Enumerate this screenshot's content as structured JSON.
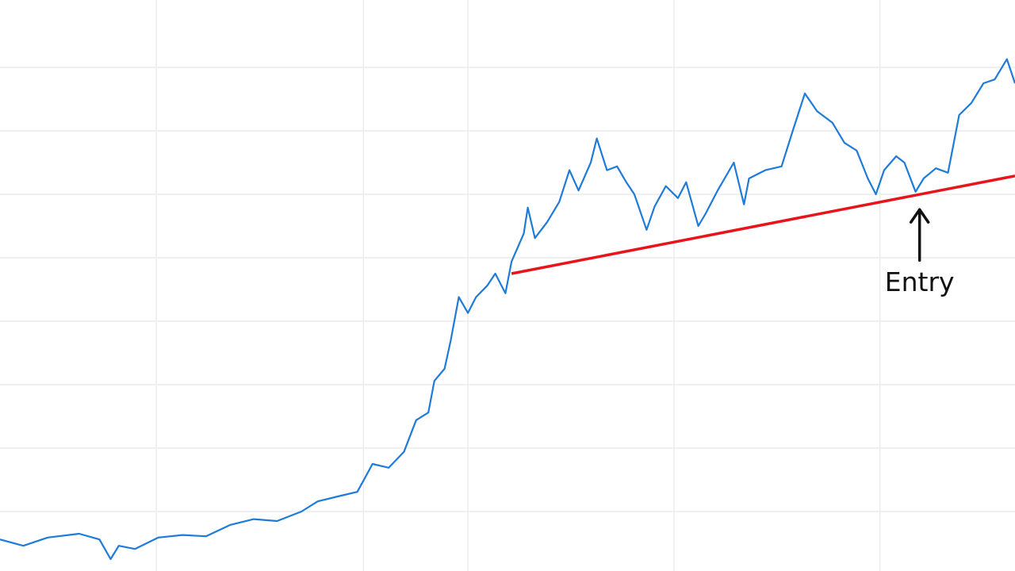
{
  "chart_data": {
    "type": "line",
    "x": [
      0,
      2.3,
      4.7,
      7.8,
      9.8,
      10.9,
      11.7,
      13.3,
      15.6,
      18.0,
      20.3,
      22.7,
      25.0,
      27.3,
      29.7,
      31.3,
      33.6,
      35.2,
      36.7,
      38.3,
      39.8,
      41.0,
      42.2,
      42.8,
      43.8,
      44.4,
      45.2,
      46.1,
      46.9,
      48.0,
      48.8,
      49.8,
      50.4,
      51.6,
      52.0,
      52.7,
      53.9,
      55.1,
      56.1,
      57.0,
      58.2,
      58.8,
      59.8,
      60.8,
      61.7,
      62.5,
      63.7,
      64.5,
      65.6,
      66.8,
      67.6,
      68.8,
      69.5,
      70.7,
      72.3,
      73.3,
      73.8,
      75.4,
      77.0,
      78.1,
      79.3,
      80.5,
      82.0,
      83.2,
      84.4,
      85.5,
      86.3,
      87.1,
      88.3,
      89.1,
      90.2,
      91.0,
      92.2,
      93.4,
      94.5,
      95.7,
      96.9,
      98.0,
      99.2,
      100.0
    ],
    "series": [
      {
        "color": "#1f7bd8",
        "values": [
          5.6,
          4.6,
          5.9,
          6.5,
          5.6,
          2.5,
          4.6,
          4.1,
          5.9,
          6.3,
          6.1,
          7.9,
          8.8,
          8.5,
          10.0,
          11.6,
          12.5,
          13.1,
          17.5,
          16.9,
          19.4,
          24.4,
          25.6,
          30.6,
          32.5,
          36.9,
          43.8,
          41.3,
          43.8,
          45.6,
          47.5,
          44.4,
          49.4,
          53.8,
          57.9,
          53.1,
          55.6,
          58.8,
          63.8,
          60.6,
          65.0,
          68.8,
          63.8,
          64.4,
          61.9,
          60.0,
          54.4,
          58.1,
          61.3,
          59.4,
          61.9,
          55.0,
          56.9,
          60.6,
          65.0,
          58.4,
          62.5,
          63.8,
          64.4,
          70.0,
          75.9,
          73.1,
          71.3,
          68.1,
          66.9,
          62.5,
          60.0,
          63.8,
          66.0,
          65.0,
          60.4,
          62.5,
          64.1,
          63.4,
          72.5,
          74.4,
          77.5,
          78.1,
          81.3,
          77.5
        ]
      }
    ],
    "trendline": {
      "x": [
        50.4,
        100
      ],
      "values": [
        47.5,
        62.9
      ],
      "color": "#e8141c"
    },
    "annotation": {
      "text": "Entry",
      "x": 90.6,
      "y": 60.6
    },
    "xlim": [
      0,
      100
    ],
    "ylim": [
      0,
      90
    ],
    "xticks": [
      15.4,
      35.8,
      46.1,
      66.4,
      86.7
    ],
    "yticks": [
      10,
      20,
      30,
      40,
      50,
      60,
      70,
      80
    ],
    "grid": true
  }
}
